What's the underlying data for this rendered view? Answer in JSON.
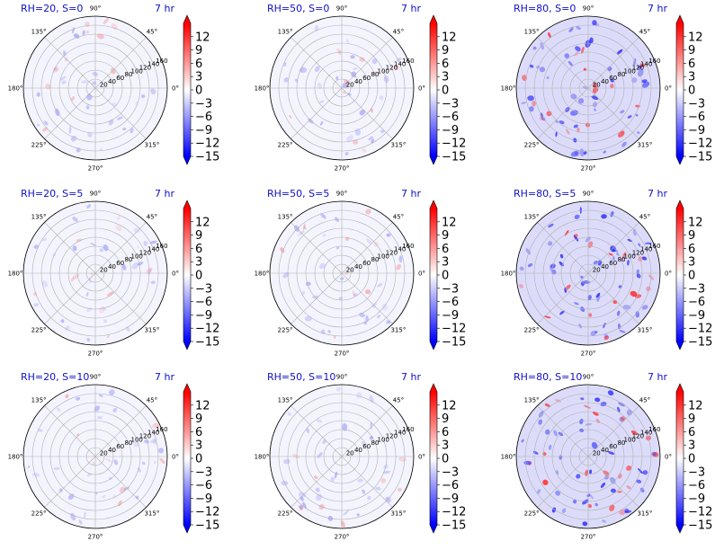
{
  "chart_data": {
    "type": "polar-contour",
    "time_label": "7 hr",
    "angular_ticks": [
      "90°",
      "45°",
      "0°",
      "315°",
      "270°",
      "225°",
      "180°",
      "135°"
    ],
    "radial_ticks": [
      "20",
      "40",
      "60",
      "80",
      "100",
      "120",
      "140",
      "160"
    ],
    "rmax": 160,
    "colorbar": {
      "ticks": [
        "12",
        "9",
        "6",
        "3",
        "0",
        "−3",
        "−6",
        "−9",
        "−12",
        "−15"
      ],
      "range": [
        -15,
        15
      ],
      "cmap": "bwr",
      "colors": {
        "max": "#ff0000",
        "zero": "#ffffff",
        "min": "#0000ff"
      }
    },
    "panels": [
      {
        "title": "RH=20, S=0",
        "rh": 20,
        "s": 0
      },
      {
        "title": "RH=50, S=0",
        "rh": 50,
        "s": 0
      },
      {
        "title": "RH=80, S=0",
        "rh": 80,
        "s": 0
      },
      {
        "title": "RH=20, S=5",
        "rh": 20,
        "s": 5
      },
      {
        "title": "RH=50, S=5",
        "rh": 50,
        "s": 5
      },
      {
        "title": "RH=80, S=5",
        "rh": 80,
        "s": 5
      },
      {
        "title": "RH=20, S=10",
        "rh": 20,
        "s": 10
      },
      {
        "title": "RH=50, S=10",
        "rh": 50,
        "s": 10
      },
      {
        "title": "RH=80, S=10",
        "rh": 80,
        "s": 10
      }
    ]
  }
}
